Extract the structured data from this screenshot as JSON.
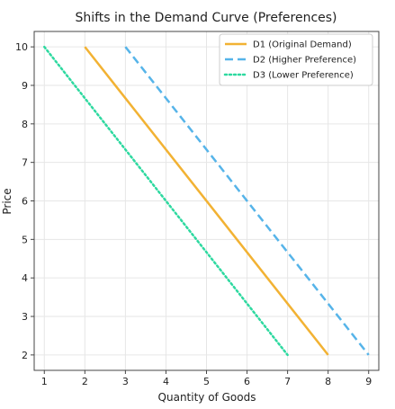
{
  "chart_data": {
    "type": "line",
    "title": "Shifts in the Demand Curve (Preferences)",
    "xlabel": "Quantity of Goods",
    "ylabel": "Price",
    "xlim": [
      0.75,
      9.25
    ],
    "ylim": [
      1.6,
      10.4
    ],
    "xticks": [
      1,
      2,
      3,
      4,
      5,
      6,
      7,
      8,
      9
    ],
    "yticks": [
      2,
      3,
      4,
      5,
      6,
      7,
      8,
      9,
      10
    ],
    "grid": true,
    "legend_position": "top-right",
    "series": [
      {
        "name": "D1 (Original Demand)",
        "color": "#f2b233",
        "style": "solid",
        "x": [
          2,
          8
        ],
        "y": [
          10,
          2
        ]
      },
      {
        "name": "D2 (Higher Preference)",
        "color": "#56b4e9",
        "style": "dashed",
        "x": [
          3,
          9
        ],
        "y": [
          10,
          2
        ]
      },
      {
        "name": "D3 (Lower Preference)",
        "color": "#2ed9a0",
        "style": "dotted",
        "x": [
          1,
          7
        ],
        "y": [
          10,
          2
        ]
      }
    ]
  }
}
